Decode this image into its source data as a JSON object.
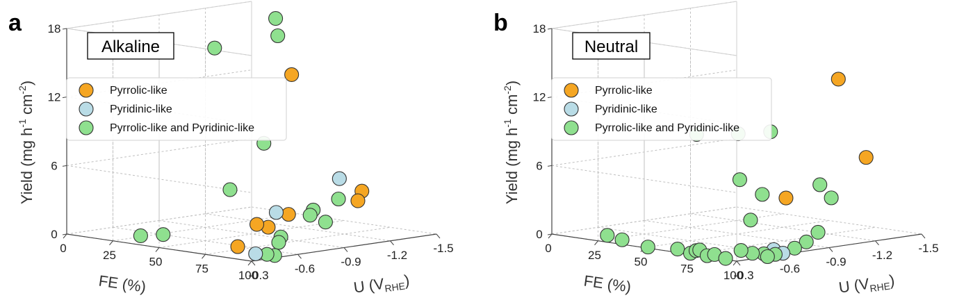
{
  "chart_data": [
    {
      "type": "scatter",
      "panel_label": "a",
      "title": "Alkaline",
      "xlabel": "FE (%)",
      "zlabel_parts": [
        "Yield (mg h",
        "-1",
        " cm",
        "-2",
        ")"
      ],
      "ulabel_parts": [
        "U (V",
        "RHE",
        ")"
      ],
      "fe_ticks": [
        "0",
        "25",
        "50",
        "75",
        "100"
      ],
      "u_ticks": [
        "-0.3",
        "-0.6",
        "-0.9",
        "-1.2",
        "-1.5"
      ],
      "yield_ticks": [
        "0",
        "6",
        "12",
        "18"
      ],
      "xlim": [
        0,
        100
      ],
      "ulim": [
        -0.3,
        -1.5
      ],
      "zlim": [
        0,
        18
      ],
      "grid": true,
      "legend_position": "upper-left",
      "series": [
        {
          "name": "Pyrrolic-like",
          "color": "#f5a623",
          "points": [
            {
              "fe": 80,
              "u": -0.45,
              "y": 0.5
            },
            {
              "fe": 84,
              "u": -0.6,
              "y": 2.0
            },
            {
              "fe": 82,
              "u": -0.55,
              "y": 2.3
            },
            {
              "fe": 70,
              "u": -0.9,
              "y": 2.2
            },
            {
              "fe": 70,
              "u": -1.35,
              "y": 2.5
            },
            {
              "fe": 68,
              "u": -1.4,
              "y": 3.2
            },
            {
              "fe": 30,
              "u": -1.4,
              "y": 12.5
            }
          ]
        },
        {
          "name": "Pyridinic-like",
          "color": "#b9dce6",
          "points": [
            {
              "fe": 98,
              "u": -0.35,
              "y": 0.5
            },
            {
              "fe": 80,
              "u": -0.7,
              "y": 3.0
            },
            {
              "fe": 60,
              "u": -1.35,
              "y": 4.2
            }
          ]
        },
        {
          "name": "Pyrrolic-like and Pyridinic-like",
          "color": "#8fe08f",
          "points": [
            {
              "fe": 40,
              "u": -0.3,
              "y": 0.8
            },
            {
              "fe": 48,
              "u": -0.35,
              "y": 1.0
            },
            {
              "fe": 100,
              "u": -0.4,
              "y": 0.4
            },
            {
              "fe": 100,
              "u": -0.45,
              "y": 0.2
            },
            {
              "fe": 98,
              "u": -0.5,
              "y": 1.2
            },
            {
              "fe": 95,
              "u": -0.55,
              "y": 1.5
            },
            {
              "fe": 55,
              "u": -0.7,
              "y": 4.4
            },
            {
              "fe": 90,
              "u": -0.8,
              "y": 2.8
            },
            {
              "fe": 90,
              "u": -0.9,
              "y": 2.0
            },
            {
              "fe": 75,
              "u": -1.0,
              "y": 2.5
            },
            {
              "fe": 72,
              "u": -1.2,
              "y": 3.0
            },
            {
              "fe": 65,
              "u": -0.8,
              "y": 8.5
            },
            {
              "fe": 55,
              "u": -0.6,
              "y": 17.0
            },
            {
              "fe": 60,
              "u": -0.95,
              "y": 17.5
            },
            {
              "fe": 38,
              "u": -1.2,
              "y": 18.0
            }
          ]
        }
      ]
    },
    {
      "type": "scatter",
      "panel_label": "b",
      "title": "Neutral",
      "xlabel": "FE (%)",
      "zlabel_parts": [
        "Yield (mg h",
        "-1",
        " cm",
        "-2",
        ")"
      ],
      "ulabel_parts": [
        "U (V",
        "RHE",
        ")"
      ],
      "fe_ticks": [
        "0",
        "25",
        "50",
        "75",
        "100"
      ],
      "u_ticks": [
        "-0.3",
        "-0.6",
        "-0.9",
        "-1.2",
        "-1.5"
      ],
      "yield_ticks": [
        "0",
        "6",
        "12",
        "18"
      ],
      "xlim": [
        0,
        100
      ],
      "ulim": [
        -0.3,
        -1.5
      ],
      "zlim": [
        0,
        18
      ],
      "grid": true,
      "legend_position": "upper-left",
      "series": [
        {
          "name": "Pyrrolic-like",
          "color": "#f5a623",
          "points": [
            {
              "fe": 55,
              "u": -1.5,
              "y": 12.5
            },
            {
              "fe": 70,
              "u": -1.5,
              "y": 6.0
            },
            {
              "fe": 60,
              "u": -1.1,
              "y": 3.0
            }
          ]
        },
        {
          "name": "Pyridinic-like",
          "color": "#b9dce6",
          "points": [
            {
              "fe": 95,
              "u": -0.6,
              "y": 0.3
            },
            {
              "fe": 100,
              "u": -0.6,
              "y": 0.1
            }
          ]
        },
        {
          "name": "Pyrrolic-like and Pyridinic-like",
          "color": "#8fe08f",
          "points": [
            {
              "fe": 30,
              "u": -0.3,
              "y": 0.6
            },
            {
              "fe": 38,
              "u": -0.3,
              "y": 0.4
            },
            {
              "fe": 52,
              "u": -0.3,
              "y": 0.1
            },
            {
              "fe": 68,
              "u": -0.3,
              "y": 0.3
            },
            {
              "fe": 75,
              "u": -0.3,
              "y": 0.1
            },
            {
              "fe": 78,
              "u": -0.3,
              "y": 0.4
            },
            {
              "fe": 80,
              "u": -0.3,
              "y": 0.5
            },
            {
              "fe": 84,
              "u": -0.3,
              "y": 0.1
            },
            {
              "fe": 88,
              "u": -0.3,
              "y": 0.3
            },
            {
              "fe": 94,
              "u": -0.3,
              "y": 0.1
            },
            {
              "fe": 94,
              "u": -0.4,
              "y": 0.6
            },
            {
              "fe": 96,
              "u": -0.45,
              "y": 0.3
            },
            {
              "fe": 98,
              "u": -0.5,
              "y": 0.2
            },
            {
              "fe": 100,
              "u": -0.5,
              "y": 0.0
            },
            {
              "fe": 100,
              "u": -0.55,
              "y": 0.1
            },
            {
              "fe": 98,
              "u": -0.7,
              "y": 0.3
            },
            {
              "fe": 96,
              "u": -0.8,
              "y": 0.6
            },
            {
              "fe": 94,
              "u": -0.9,
              "y": 1.2
            },
            {
              "fe": 70,
              "u": -0.75,
              "y": 2.0
            },
            {
              "fe": 45,
              "u": -0.7,
              "y": 9.0
            },
            {
              "fe": 55,
              "u": -0.85,
              "y": 9.0
            },
            {
              "fe": 60,
              "u": -1.0,
              "y": 9.0
            },
            {
              "fe": 60,
              "u": -0.8,
              "y": 5.2
            },
            {
              "fe": 68,
              "u": -0.85,
              "y": 4.0
            },
            {
              "fe": 70,
              "u": -1.2,
              "y": 4.2
            },
            {
              "fe": 72,
              "u": -1.25,
              "y": 3.0
            }
          ]
        }
      ]
    }
  ]
}
